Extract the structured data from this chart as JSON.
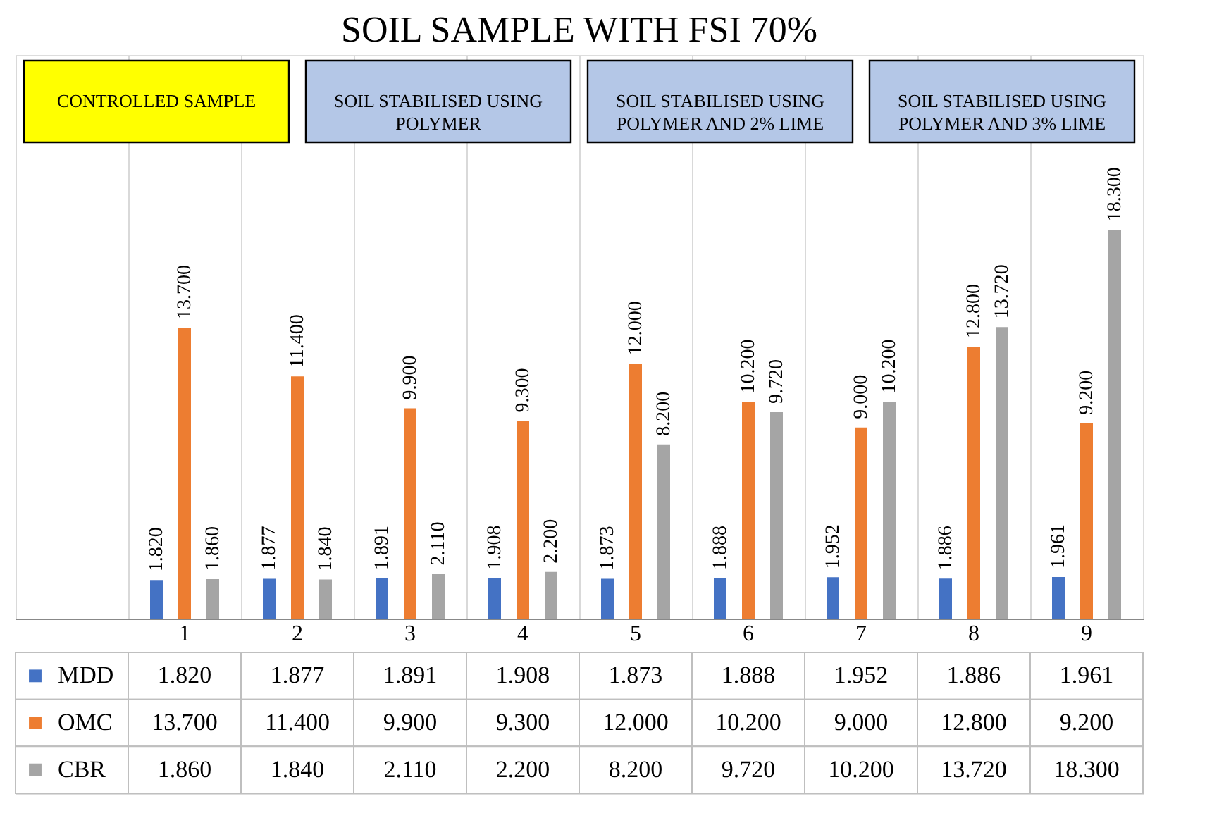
{
  "chart_data": {
    "type": "bar",
    "title": "SOIL SAMPLE WITH FSI 70%",
    "categories": [
      "1",
      "2",
      "3",
      "4",
      "5",
      "6",
      "7",
      "8",
      "9"
    ],
    "series": [
      {
        "name": "MDD",
        "color": "#4472c4",
        "values": [
          1.82,
          1.877,
          1.891,
          1.908,
          1.873,
          1.888,
          1.952,
          1.886,
          1.961
        ],
        "value_labels": [
          "1.820",
          "1.877",
          "1.891",
          "1.908",
          "1.873",
          "1.888",
          "1.952",
          "1.886",
          "1.961"
        ]
      },
      {
        "name": "OMC",
        "color": "#ed7d31",
        "values": [
          13.7,
          11.4,
          9.9,
          9.3,
          12.0,
          10.2,
          9.0,
          12.8,
          9.2
        ],
        "value_labels": [
          "13.700",
          "11.400",
          "9.900",
          "9.300",
          "12.000",
          "10.200",
          "9.000",
          "12.800",
          "9.200"
        ]
      },
      {
        "name": "CBR",
        "color": "#a5a5a5",
        "values": [
          1.86,
          1.84,
          2.11,
          2.2,
          8.2,
          9.72,
          10.2,
          13.72,
          18.3
        ],
        "value_labels": [
          "1.860",
          "1.840",
          "2.110",
          "2.200",
          "8.200",
          "9.720",
          "10.200",
          "13.720",
          "18.300"
        ]
      }
    ],
    "data_labels": true,
    "grid": "x",
    "legend": "bottom",
    "annotations": [
      "CONTROLLED SAMPLE",
      "SOIL STABILISED USING POLYMER",
      "SOIL STABILISED USING POLYMER AND 2% LIME",
      "SOIL STABILISED USING POLYMER AND 3% LIME"
    ]
  }
}
